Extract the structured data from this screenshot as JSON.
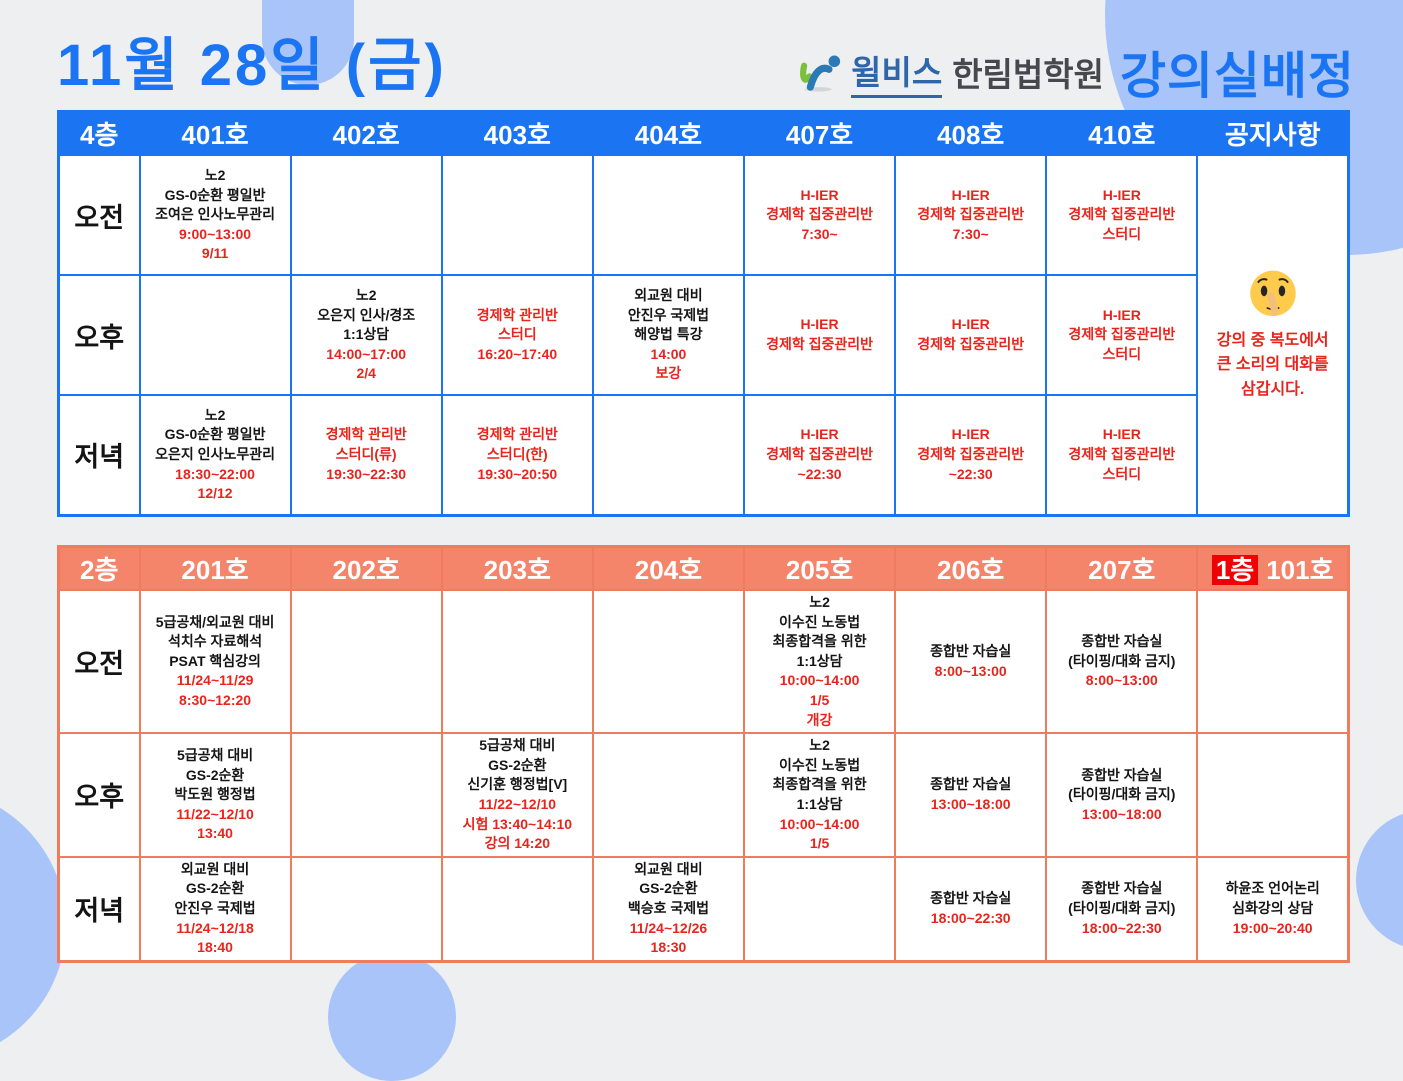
{
  "header": {
    "date_title": "11월 28일 (금)",
    "logo": {
      "brand": "윌비스",
      "academy": "한림법학원",
      "heading": "강의실배정"
    }
  },
  "colors": {
    "blue": "#1b75f2",
    "coral": "#f4846a",
    "red_badge": "#ee0202",
    "red_text": "#e8251c",
    "blob": "#a9c4f8"
  },
  "floor4": {
    "id": "floor4",
    "floor_label": "4층",
    "rooms": [
      "401호",
      "402호",
      "403호",
      "404호",
      "407호",
      "408호",
      "410호"
    ],
    "notice_header": "공지사항",
    "notice": {
      "icon": "shushing-face",
      "lines": [
        "강의 중 복도에서",
        "큰 소리의 대화를",
        "삼갑시다."
      ]
    },
    "rows": [
      {
        "key": "morning",
        "label": "오전",
        "cells": [
          {
            "black": [
              "노2",
              "GS-0순환 평일반",
              "조여은 인사노무관리"
            ],
            "red": [
              "9:00~13:00",
              "9/11"
            ]
          },
          {},
          {},
          {},
          {
            "red": [
              "H-IER",
              "경제학 집중관리반",
              "7:30~"
            ],
            "dark_bottom": true
          },
          {
            "red": [
              "H-IER",
              "경제학 집중관리반",
              "7:30~"
            ]
          },
          {
            "red": [
              "H-IER",
              "경제학 집중관리반",
              "스터디"
            ]
          }
        ]
      },
      {
        "key": "afternoon",
        "label": "오후",
        "cells": [
          {},
          {
            "black": [
              "노2",
              "오은지 인사/경조",
              "1:1상담"
            ],
            "red": [
              "14:00~17:00",
              "2/4"
            ]
          },
          {
            "red": [
              "경제학 관리반",
              "스터디",
              "16:20~17:40"
            ]
          },
          {
            "black": [
              "외교원 대비",
              "안진우 국제법",
              "해양법 특강"
            ],
            "red": [
              "14:00",
              "보강"
            ]
          },
          {
            "red": [
              "H-IER",
              "경제학 집중관리반"
            ]
          },
          {
            "red": [
              "H-IER",
              "경제학 집중관리반"
            ]
          },
          {
            "red": [
              "H-IER",
              "경제학 집중관리반",
              "스터디"
            ]
          }
        ]
      },
      {
        "key": "evening",
        "label": "저녁",
        "cells": [
          {
            "black": [
              "노2",
              "GS-0순환 평일반",
              "오은지 인사노무관리"
            ],
            "red": [
              "18:30~22:00",
              "12/12"
            ]
          },
          {
            "red": [
              "경제학 관리반",
              "스터디(류)",
              "19:30~22:30"
            ]
          },
          {
            "red": [
              "경제학 관리반",
              "스터디(한)",
              "19:30~20:50"
            ]
          },
          {},
          {
            "red": [
              "H-IER",
              "경제학 집중관리반",
              "~22:30"
            ]
          },
          {
            "red": [
              "H-IER",
              "경제학 집중관리반",
              "~22:30"
            ]
          },
          {
            "red": [
              "H-IER",
              "경제학 집중관리반",
              "스터디"
            ]
          }
        ]
      }
    ]
  },
  "floor2": {
    "id": "floor2",
    "floor_label": "2층",
    "rooms": [
      "201호",
      "202호",
      "203호",
      "204호",
      "205호",
      "206호",
      "207호"
    ],
    "last_column": {
      "floor_badge": "1층",
      "room": "101호"
    },
    "rows": [
      {
        "key": "morning",
        "label": "오전",
        "cells": [
          {
            "black": [
              "5급공채/외교원 대비",
              "석치수 자료해석",
              "PSAT 핵심강의"
            ],
            "red": [
              "11/24~11/29",
              "8:30~12:20"
            ]
          },
          {},
          {},
          {},
          {
            "black": [
              "노2",
              "이수진 노동법",
              "최종합격을 위한",
              "1:1상담"
            ],
            "red": [
              "10:00~14:00",
              "1/5",
              "개강"
            ]
          },
          {
            "black": [
              "종합반 자습실"
            ],
            "red": [
              "8:00~13:00"
            ]
          },
          {
            "black": [
              "종합반 자습실",
              "(타이핑/대화 금지)"
            ],
            "red": [
              "8:00~13:00"
            ]
          },
          {}
        ]
      },
      {
        "key": "afternoon",
        "label": "오후",
        "cells": [
          {
            "black": [
              "5급공채 대비",
              "GS-2순환",
              "박도원 행정법"
            ],
            "red": [
              "11/22~12/10",
              "13:40"
            ]
          },
          {},
          {
            "black": [
              "5급공채 대비",
              "GS-2순환",
              "신기훈 행정법[V]"
            ],
            "red": [
              "11/22~12/10",
              "시험 13:40~14:10",
              "강의 14:20"
            ]
          },
          {},
          {
            "black": [
              "노2",
              "이수진 노동법",
              "최종합격을 위한",
              "1:1상담"
            ],
            "red": [
              "10:00~14:00",
              "1/5"
            ]
          },
          {
            "black": [
              "종합반 자습실"
            ],
            "red": [
              "13:00~18:00"
            ]
          },
          {
            "black": [
              "종합반 자습실",
              "(타이핑/대화 금지)"
            ],
            "red": [
              "13:00~18:00"
            ]
          },
          {}
        ]
      },
      {
        "key": "evening",
        "label": "저녁",
        "cells": [
          {
            "black": [
              "외교원 대비",
              "GS-2순환",
              "안진우 국제법"
            ],
            "red": [
              "11/24~12/18",
              "18:40"
            ]
          },
          {},
          {},
          {
            "black": [
              "외교원 대비",
              "GS-2순환",
              "백승호 국제법"
            ],
            "red": [
              "11/24~12/26",
              "18:30"
            ]
          },
          {},
          {
            "black": [
              "종합반 자습실"
            ],
            "red": [
              "18:00~22:30"
            ]
          },
          {
            "black": [
              "종합반 자습실",
              "(타이핑/대화 금지)"
            ],
            "red": [
              "18:00~22:30"
            ]
          },
          {
            "black": [
              "하윤조 언어논리",
              "심화강의 상담"
            ],
            "red": [
              "19:00~20:40"
            ]
          }
        ]
      }
    ]
  }
}
